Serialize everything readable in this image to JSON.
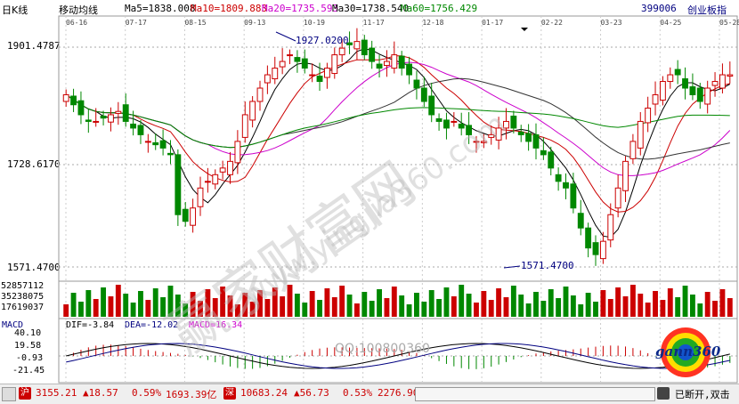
{
  "header": {
    "period": "日K线",
    "indicator": "移动均线",
    "ma": [
      {
        "label": "Ma5=1838.008",
        "color": "#000000"
      },
      {
        "label": "Ma10=1809.883",
        "color": "#cc0000"
      },
      {
        "label": "Ma20=1735.593",
        "color": "#cc00cc"
      },
      {
        "label": "Ma30=1738.540",
        "color": "#000000"
      },
      {
        "label": "Ma60=1756.429",
        "color": "#008800"
      }
    ],
    "code": "399006",
    "name": "创业板指"
  },
  "price_axis": {
    "high": "1901.4787",
    "mid": "1728.6170",
    "low": "1571.4700"
  },
  "annotations": {
    "max": "1927.0200",
    "min": "1571.4700"
  },
  "dates": [
    "06-16",
    "07-17",
    "08-15",
    "09-13",
    "10-19",
    "11-17",
    "12-18",
    "01-17",
    "02-22",
    "03-23",
    "04-25",
    "05-28"
  ],
  "volume_axis": [
    "52857112",
    "35238075",
    "17619037"
  ],
  "macd": {
    "title": "MACD",
    "dif": "DIF=-3.84",
    "dea": "DEA=-12.02",
    "macd": "MACD=16.34",
    "axis": [
      "40.10",
      "19.58",
      "-0.93",
      "-21.45"
    ]
  },
  "watermark": {
    "qq": "QQ:100800360",
    "site": "www.yingjia360.com",
    "brand": "赢家财富网"
  },
  "logo": {
    "text": "gann360"
  },
  "status_bar": {
    "sh_index": "3155.21",
    "sh_change": "▲18.57",
    "sh_pct": "0.59%",
    "sh_amount": "1693.39亿",
    "sz_index": "10683.24",
    "sz_change": "▲56.73",
    "sz_pct": "0.53%",
    "sz_amount": "2276.90",
    "disconnect": "已断开,双击"
  },
  "colors": {
    "up": "#cc0000",
    "down": "#008800",
    "bg": "#ffffff"
  },
  "chart_data": {
    "type": "candlestick",
    "closes": [
      1830,
      1815,
      1800,
      1790,
      1790,
      1795,
      1800,
      1805,
      1790,
      1780,
      1770,
      1760,
      1755,
      1750,
      1740,
      1650,
      1640,
      1660,
      1690,
      1700,
      1710,
      1720,
      1730,
      1760,
      1800,
      1820,
      1840,
      1860,
      1870,
      1880,
      1890,
      1880,
      1870,
      1860,
      1850,
      1870,
      1890,
      1900,
      1905,
      1910,
      1890,
      1880,
      1870,
      1880,
      1890,
      1870,
      1860,
      1840,
      1820,
      1800,
      1790,
      1780,
      1790,
      1780,
      1770,
      1760,
      1760,
      1770,
      1780,
      1790,
      1780,
      1770,
      1760,
      1750,
      1740,
      1720,
      1700,
      1690,
      1660,
      1630,
      1600,
      1590,
      1610,
      1650,
      1690,
      1730,
      1760,
      1790,
      1810,
      1830,
      1850,
      1860,
      1860,
      1840,
      1830,
      1820,
      1840,
      1850,
      1860,
      1860
    ],
    "volume_max": 52857112,
    "macd_range": [
      -21.45,
      40.1
    ]
  }
}
